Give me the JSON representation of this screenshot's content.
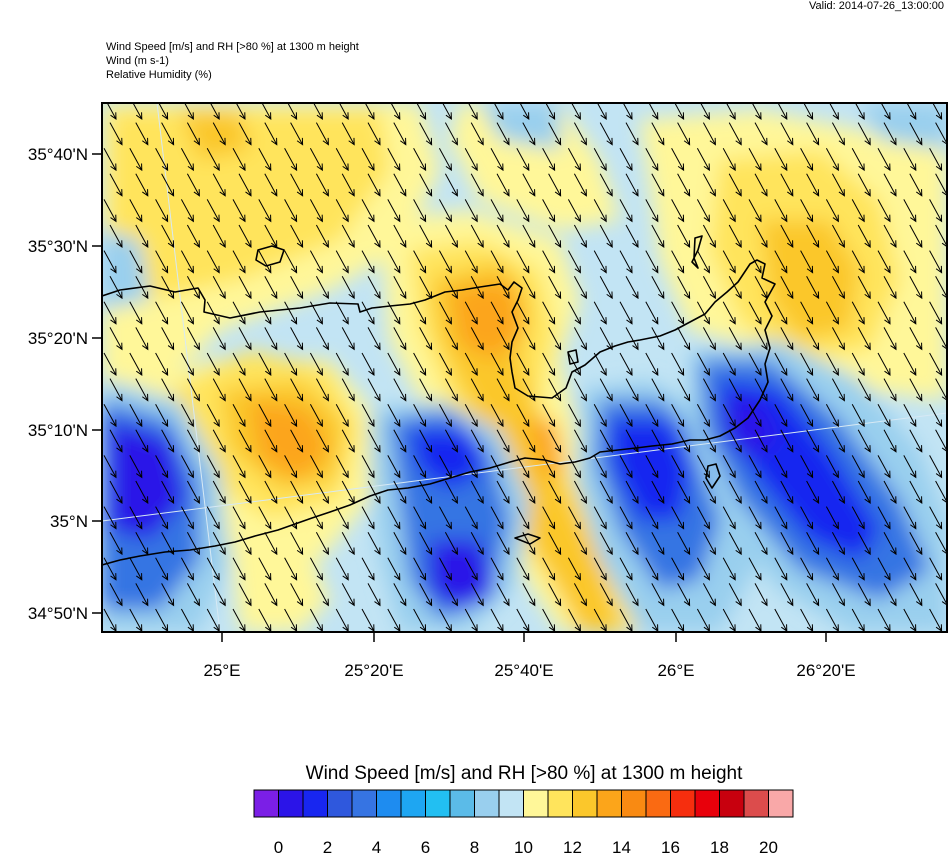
{
  "valid_time": "Valid: 2014-07-26_13:00:00",
  "header": {
    "line1": "Wind Speed [m/s] and RH [>80 %] at 1300 m height",
    "line2": "Wind   (m s-1)",
    "line3": "Relative Humidity    (%)"
  },
  "map": {
    "lat_labels": [
      "35°40'N",
      "35°30'N",
      "35°20'N",
      "35°10'N",
      "35°N",
      "34°50'N"
    ],
    "lon_labels": [
      "25°E",
      "25°20'E",
      "25°40'E",
      "26°E",
      "26°20'E"
    ],
    "wind_direction": "from north-west"
  },
  "colorbar": {
    "title": "Wind Speed [m/s] and RH [>80 %] at 1300 m height",
    "labels": [
      "0",
      "2",
      "4",
      "6",
      "8",
      "10",
      "12",
      "14",
      "16",
      "18",
      "20"
    ],
    "colors": [
      "#7b1fe6",
      "#2b14e8",
      "#1826f0",
      "#2f58dd",
      "#3674e3",
      "#1e8cf0",
      "#1ea6f2",
      "#22bff2",
      "#5bbbe8",
      "#99cfee",
      "#c2e4f4",
      "#fff799",
      "#ffe45c",
      "#fbc72b",
      "#fca51a",
      "#f98a12",
      "#fa6a12",
      "#f62e0e",
      "#e8000b",
      "#c8000e",
      "#dc4c4c",
      "#f9a8a8"
    ]
  },
  "palette": {
    "frame": "#000000",
    "coast": "#000000",
    "grid": "#d7e9f4"
  }
}
